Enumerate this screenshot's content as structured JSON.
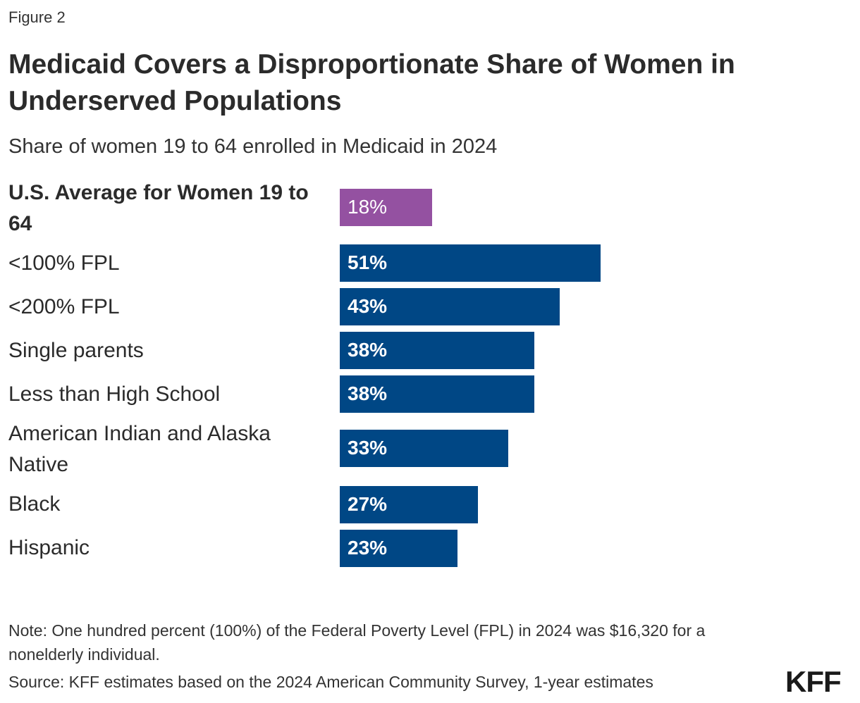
{
  "header": {
    "figure_label": "Figure 2",
    "title": "Medicaid Covers a Disproportionate Share of Women in Underserved Populations",
    "subtitle": "Share of women 19 to 64 enrolled in Medicaid in 2024"
  },
  "chart_data": {
    "type": "bar",
    "orientation": "horizontal",
    "title": "Medicaid Covers a Disproportionate Share of Women in Underserved Populations",
    "subtitle": "Share of women 19 to 64 enrolled in Medicaid in 2024",
    "categories": [
      "U.S. Average for Women 19 to 64",
      "<100% FPL",
      "<200% FPL",
      "Single parents",
      "Less than High School",
      "American Indian and Alaska Native",
      "Black",
      "Hispanic"
    ],
    "values": [
      18,
      51,
      43,
      38,
      38,
      33,
      27,
      23
    ],
    "value_labels": [
      "18%",
      "51%",
      "43%",
      "38%",
      "38%",
      "33%",
      "27%",
      "23%"
    ],
    "unit": "%",
    "xlim": [
      0,
      100
    ],
    "grid": false,
    "legend": "none",
    "colors": {
      "highlight": "#9451a1",
      "default": "#004785"
    },
    "highlight_index": 0
  },
  "footer": {
    "note": "Note: One hundred percent (100%) of the Federal Poverty Level (FPL) in 2024 was $16,320 for a nonelderly individual.",
    "source": "Source: KFF estimates based on the 2024 American Community Survey, 1-year estimates",
    "logo": "KFF"
  }
}
